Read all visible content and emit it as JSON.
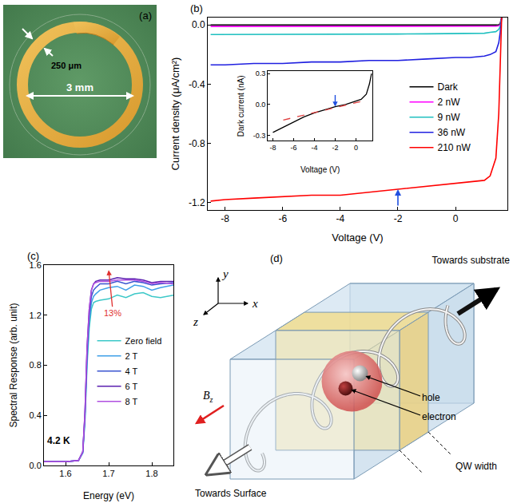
{
  "chart_data": [
    {
      "label": "(b)",
      "type": "line",
      "x_label": "Voltage (V)",
      "y_label": "Current density (μA/cm²)",
      "x": [
        -8.5,
        -8,
        -7,
        -6,
        -5,
        -4,
        -3,
        -2,
        -1,
        0,
        0.5,
        1,
        1.2,
        1.4,
        1.5,
        1.55,
        1.6
      ],
      "series": [
        {
          "name": "Dark",
          "color": "#000000",
          "values": [
            0,
            0,
            0,
            0,
            0,
            0,
            0,
            0,
            0,
            0,
            0,
            0,
            0,
            0,
            0,
            0.01,
            0.05
          ]
        },
        {
          "name": "2 nW",
          "color": "#ff00ff",
          "values": [
            -0.01,
            -0.01,
            -0.01,
            -0.01,
            -0.01,
            -0.01,
            -0.01,
            -0.01,
            -0.01,
            -0.01,
            -0.01,
            -0.01,
            -0.01,
            -0.008,
            -0.005,
            0,
            0.05
          ]
        },
        {
          "name": "9 nW",
          "color": "#20c0c0",
          "values": [
            -0.065,
            -0.065,
            -0.065,
            -0.064,
            -0.063,
            -0.063,
            -0.062,
            -0.061,
            -0.06,
            -0.06,
            -0.058,
            -0.056,
            -0.05,
            -0.045,
            -0.03,
            -0.01,
            0.05
          ]
        },
        {
          "name": "36 nW",
          "color": "#2020e0",
          "values": [
            -0.27,
            -0.27,
            -0.26,
            -0.26,
            -0.25,
            -0.25,
            -0.24,
            -0.24,
            -0.23,
            -0.22,
            -0.22,
            -0.21,
            -0.2,
            -0.18,
            -0.12,
            -0.05,
            0.05
          ]
        },
        {
          "name": "210 nW",
          "color": "#ff0000",
          "values": [
            -1.19,
            -1.18,
            -1.17,
            -1.16,
            -1.15,
            -1.15,
            -1.13,
            -1.11,
            -1.09,
            -1.07,
            -1.06,
            -1.05,
            -1.02,
            -0.9,
            -0.6,
            -0.2,
            0.05
          ]
        }
      ],
      "xlim": [
        -8.6,
        1.8
      ],
      "ylim": [
        -1.25,
        0.05
      ],
      "xticks": [
        -8,
        -6,
        -4,
        -2,
        0
      ],
      "yticks": [
        {
          "value": 0,
          "label": "0.0"
        },
        -0.4,
        -0.8,
        -1.2
      ],
      "legend": "right",
      "grid": false,
      "arrows": [
        {
          "x": -2,
          "y": -1.11
        }
      ]
    },
    {
      "type": "line",
      "x_label": "Voltage (V)",
      "y_label": "Dark current (nA)",
      "x": [
        -8,
        -7,
        -6,
        -5,
        -4,
        -3,
        -2,
        -1,
        0,
        0.5,
        1,
        1.3,
        1.5
      ],
      "series": [
        {
          "color": "#000000",
          "values": [
            -0.27,
            -0.22,
            -0.17,
            -0.12,
            -0.08,
            -0.05,
            -0.02,
            0,
            0.03,
            0.05,
            0.1,
            0.2,
            0.3
          ]
        },
        {
          "color": "#e04040",
          "line_style": "dash",
          "x": [
            -7,
            0.5
          ],
          "values": [
            -0.15,
            0.03
          ]
        }
      ],
      "xlim": [
        -8.5,
        1.6
      ],
      "ylim": [
        -0.35,
        0.32
      ],
      "xticks": [
        -8,
        -6,
        -4,
        -2,
        0
      ],
      "yticks": [
        -0.3,
        {
          "value": 0,
          "label": "0.0"
        },
        0.3
      ],
      "grid": false,
      "arrows": [
        {
          "x": -2,
          "y": -0.02
        }
      ]
    },
    {
      "label": "(c)",
      "type": "line",
      "x_label": "Energy (eV)",
      "y_label": "Spectral Response (arb. unit)",
      "x": [
        1.55,
        1.6,
        1.63,
        1.64,
        1.645,
        1.65,
        1.655,
        1.66,
        1.665,
        1.67,
        1.68,
        1.7,
        1.72,
        1.74,
        1.76,
        1.78,
        1.8,
        1.82,
        1.85
      ],
      "series": [
        {
          "name": "Zero field",
          "color": "#3cc8c8",
          "values": [
            0.03,
            0.03,
            0.04,
            0.1,
            0.35,
            0.8,
            1.1,
            1.25,
            1.3,
            1.31,
            1.32,
            1.33,
            1.36,
            1.34,
            1.37,
            1.38,
            1.35,
            1.34,
            1.36
          ]
        },
        {
          "name": "2 T",
          "color": "#3fa0e8",
          "values": [
            0.03,
            0.03,
            0.04,
            0.1,
            0.37,
            0.85,
            1.15,
            1.3,
            1.35,
            1.37,
            1.4,
            1.42,
            1.43,
            1.4,
            1.44,
            1.43,
            1.4,
            1.42,
            1.44
          ]
        },
        {
          "name": "4 T",
          "color": "#3a55d0",
          "values": [
            0.03,
            0.03,
            0.04,
            0.11,
            0.4,
            0.9,
            1.2,
            1.35,
            1.4,
            1.42,
            1.45,
            1.45,
            1.47,
            1.45,
            1.47,
            1.46,
            1.44,
            1.45,
            1.46
          ]
        },
        {
          "name": "6 T",
          "color": "#5a1fb0",
          "values": [
            0.03,
            0.03,
            0.04,
            0.11,
            0.42,
            0.95,
            1.25,
            1.4,
            1.45,
            1.47,
            1.48,
            1.48,
            1.5,
            1.49,
            1.49,
            1.48,
            1.46,
            1.47,
            1.47
          ]
        },
        {
          "name": "8 T",
          "color": "#b050e0",
          "values": [
            0.03,
            0.03,
            0.04,
            0.11,
            0.42,
            0.95,
            1.25,
            1.4,
            1.45,
            1.46,
            1.47,
            1.47,
            1.48,
            1.48,
            1.48,
            1.47,
            1.45,
            1.46,
            1.45
          ]
        }
      ],
      "xlim": [
        1.55,
        1.85
      ],
      "ylim": [
        0,
        1.6
      ],
      "xticks": [
        1.6,
        1.7,
        1.8
      ],
      "yticks": [
        {
          "value": 0,
          "label": "0.0"
        },
        0.4,
        0.8,
        1.2,
        1.6
      ],
      "legend": "right",
      "grid": false,
      "annotations": [
        {
          "text": "4.2 K",
          "x": 1.585,
          "y": 0.2
        },
        {
          "text": "13%",
          "x": 1.71,
          "y": 1.22,
          "arrow_x": 1.7,
          "arrow_y": 1.56,
          "color": "#e03030"
        }
      ]
    }
  ],
  "photo": {
    "label": "(a)",
    "ring_width": "250 μm",
    "diameter": "3 mm"
  },
  "diagram": {
    "label": "(d)",
    "axes": {
      "x": "x",
      "y": "y",
      "z": "z"
    },
    "towards_substrate": "Towards substrate",
    "towards_surface": "Towards Surface",
    "hole": "hole",
    "electron": "electron",
    "qw_width": "QW width",
    "field": {
      "base": "B",
      "sub": "z"
    }
  }
}
